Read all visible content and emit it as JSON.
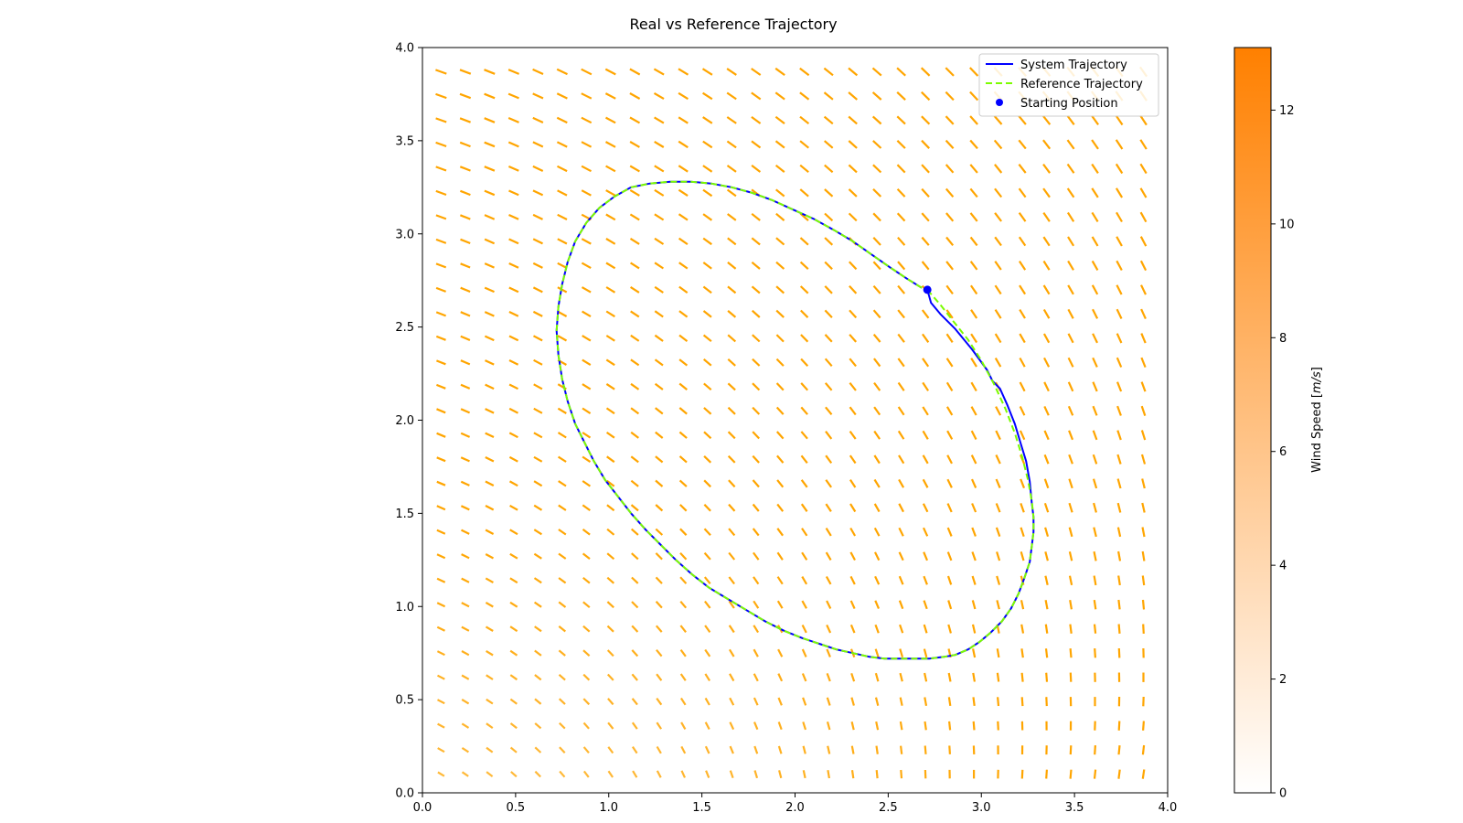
{
  "chart_data": {
    "type": "line",
    "title": "Real vs Reference Trajectory",
    "xlim": [
      0,
      4
    ],
    "ylim": [
      0,
      4
    ],
    "x_ticks": [
      0.0,
      0.5,
      1.0,
      1.5,
      2.0,
      2.5,
      3.0,
      3.5,
      4.0
    ],
    "y_ticks": [
      0.0,
      0.5,
      1.0,
      1.5,
      2.0,
      2.5,
      3.0,
      3.5,
      4.0
    ],
    "x_tick_labels": [
      "0.0",
      "0.5",
      "1.0",
      "1.5",
      "2.0",
      "2.5",
      "3.0",
      "3.5",
      "4.0"
    ],
    "y_tick_labels": [
      "0.0",
      "0.5",
      "1.0",
      "1.5",
      "2.0",
      "2.5",
      "3.0",
      "3.5",
      "4.0"
    ],
    "grid": false,
    "legend_position": "top-right",
    "legend": [
      "System Trajectory",
      "Reference Trajectory",
      "Starting Position"
    ],
    "series": [
      {
        "name": "System Trajectory",
        "style": "solid",
        "color": "#0000ff",
        "x": [
          2.71,
          2.73,
          2.78,
          2.86,
          2.95,
          3.03,
          3.06,
          3.1,
          3.14,
          3.18,
          3.21,
          3.24,
          3.26,
          3.27,
          3.28,
          3.28,
          3.27,
          3.26,
          3.23,
          3.2,
          3.16,
          3.11,
          3.05,
          2.99,
          2.93,
          2.86,
          2.8,
          2.72,
          2.64,
          2.56,
          2.48,
          2.4,
          2.31,
          2.22,
          2.13,
          2.04,
          1.94,
          1.84,
          1.74,
          1.64,
          1.54,
          1.45,
          1.36,
          1.28,
          1.2,
          1.12,
          1.05,
          0.98,
          0.92,
          0.87,
          0.82,
          0.78,
          0.75,
          0.73,
          0.72,
          0.73,
          0.75,
          0.78,
          0.82,
          0.88,
          0.95,
          1.03,
          1.12,
          1.22,
          1.33,
          1.44,
          1.55,
          1.66,
          1.77,
          1.88,
          1.99,
          2.1,
          2.21,
          2.31,
          2.41,
          2.51,
          2.6,
          2.68
        ],
        "y": [
          2.7,
          2.63,
          2.57,
          2.49,
          2.38,
          2.27,
          2.21,
          2.17,
          2.08,
          1.98,
          1.88,
          1.78,
          1.67,
          1.56,
          1.48,
          1.4,
          1.32,
          1.24,
          1.15,
          1.07,
          0.99,
          0.92,
          0.86,
          0.81,
          0.77,
          0.74,
          0.73,
          0.72,
          0.72,
          0.72,
          0.72,
          0.73,
          0.75,
          0.77,
          0.8,
          0.83,
          0.87,
          0.92,
          0.98,
          1.04,
          1.1,
          1.17,
          1.25,
          1.33,
          1.41,
          1.5,
          1.59,
          1.68,
          1.78,
          1.88,
          1.98,
          2.1,
          2.22,
          2.35,
          2.48,
          2.61,
          2.73,
          2.85,
          2.96,
          3.06,
          3.14,
          3.2,
          3.25,
          3.27,
          3.28,
          3.28,
          3.27,
          3.25,
          3.22,
          3.18,
          3.13,
          3.08,
          3.02,
          2.96,
          2.89,
          2.82,
          2.76,
          2.71
        ]
      },
      {
        "name": "Reference Trajectory",
        "style": "dashed",
        "color": "#7cfc00",
        "x": [
          2.71,
          2.78,
          2.85,
          2.93,
          3.0,
          3.07,
          3.13,
          3.18,
          3.22,
          3.25,
          3.27,
          3.28,
          3.28,
          3.27,
          3.26,
          3.23,
          3.2,
          3.16,
          3.11,
          3.05,
          2.99,
          2.93,
          2.86,
          2.8,
          2.72,
          2.64,
          2.56,
          2.48,
          2.4,
          2.31,
          2.22,
          2.13,
          2.04,
          1.94,
          1.84,
          1.74,
          1.64,
          1.54,
          1.45,
          1.36,
          1.28,
          1.2,
          1.12,
          1.05,
          0.98,
          0.92,
          0.87,
          0.82,
          0.78,
          0.75,
          0.73,
          0.72,
          0.73,
          0.75,
          0.78,
          0.82,
          0.88,
          0.95,
          1.03,
          1.12,
          1.22,
          1.33,
          1.44,
          1.55,
          1.66,
          1.77,
          1.88,
          1.99,
          2.1,
          2.21,
          2.31,
          2.41,
          2.51,
          2.6,
          2.68,
          2.71
        ],
        "y": [
          2.7,
          2.62,
          2.53,
          2.43,
          2.32,
          2.19,
          2.06,
          1.93,
          1.8,
          1.68,
          1.57,
          1.48,
          1.4,
          1.32,
          1.24,
          1.15,
          1.07,
          0.99,
          0.92,
          0.86,
          0.81,
          0.77,
          0.74,
          0.73,
          0.72,
          0.72,
          0.72,
          0.72,
          0.73,
          0.75,
          0.77,
          0.8,
          0.83,
          0.87,
          0.92,
          0.98,
          1.04,
          1.1,
          1.17,
          1.25,
          1.33,
          1.41,
          1.5,
          1.59,
          1.68,
          1.78,
          1.88,
          1.98,
          2.1,
          2.22,
          2.35,
          2.48,
          2.61,
          2.73,
          2.85,
          2.96,
          3.06,
          3.14,
          3.2,
          3.25,
          3.27,
          3.28,
          3.28,
          3.27,
          3.25,
          3.22,
          3.18,
          3.13,
          3.08,
          3.02,
          2.96,
          2.89,
          2.82,
          2.76,
          2.71,
          2.7
        ]
      },
      {
        "name": "Starting Position",
        "style": "marker",
        "color": "#0000ff",
        "x": [
          2.71
        ],
        "y": [
          2.7
        ]
      }
    ],
    "wind_field": {
      "type": "quiver",
      "color": "#ffa500",
      "x_start": 0.1,
      "x_step": 0.13,
      "nx": 30,
      "y_start": 0.1,
      "y_step": 0.13,
      "ny": 30
    },
    "colorbar": {
      "label": "Wind Speed [m/s]",
      "label_prefix": "Wind Speed [",
      "label_unit": "m/s",
      "label_suffix": "]",
      "min": 0,
      "max": 13.1,
      "ticks": [
        0,
        2,
        4,
        6,
        8,
        10,
        12
      ],
      "tick_labels": [
        "0",
        "2",
        "4",
        "6",
        "8",
        "10",
        "12"
      ],
      "color_low": "#ffffff",
      "color_high": "#ff8000"
    }
  }
}
